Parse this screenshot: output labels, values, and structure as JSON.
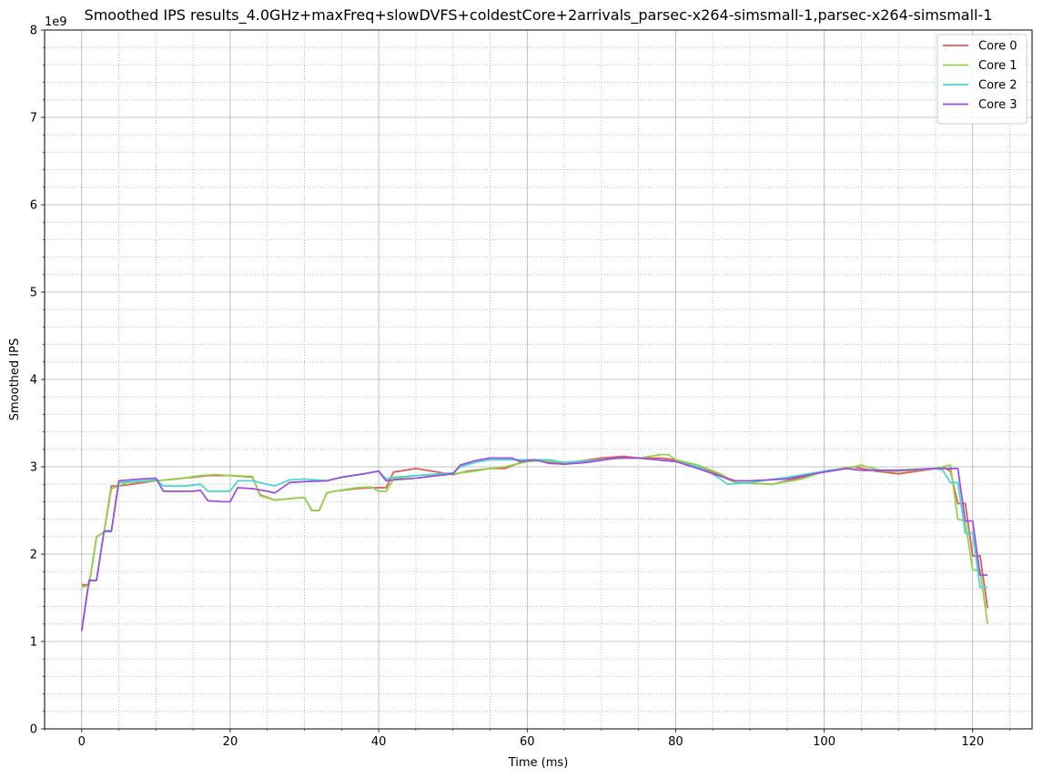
{
  "chart_data": {
    "type": "line",
    "title": "Smoothed IPS results_4.0GHz+maxFreq+slowDVFS+coldestCore+2arrivals_parsec-x264-simsmall-1,parsec-x264-simsmall-1",
    "xlabel": "Time (ms)",
    "ylabel": "Smoothed IPS",
    "y_offset_text": "1e9",
    "xlim": [
      -5,
      128
    ],
    "ylim": [
      0,
      8
    ],
    "x_ticks": [
      0,
      20,
      40,
      60,
      80,
      100,
      120
    ],
    "y_ticks": [
      0,
      1,
      2,
      3,
      4,
      5,
      6,
      7,
      8
    ],
    "grid": "major solid, minor dotted",
    "legend_position": "top-right",
    "series": [
      {
        "name": "Core 0",
        "color": "#e05a5a",
        "x": [
          0,
          1,
          2,
          3,
          4,
          5,
          10,
          15,
          17,
          20,
          23,
          24,
          26,
          30,
          31,
          32,
          33,
          34,
          37,
          39,
          40,
          41,
          42,
          45,
          50,
          52,
          55,
          57,
          60,
          62,
          65,
          70,
          73,
          75,
          78,
          80,
          83,
          86,
          88,
          93,
          97,
          100,
          104,
          107,
          110,
          115,
          116,
          117,
          118,
          119,
          120,
          121,
          122
        ],
        "y": [
          1.65,
          1.65,
          2.2,
          2.25,
          2.78,
          2.78,
          2.84,
          2.88,
          2.9,
          2.9,
          2.88,
          2.68,
          2.62,
          2.65,
          2.5,
          2.5,
          2.7,
          2.72,
          2.75,
          2.76,
          2.76,
          2.76,
          2.94,
          2.98,
          2.91,
          2.95,
          2.98,
          2.98,
          3.08,
          3.07,
          3.04,
          3.1,
          3.12,
          3.1,
          3.1,
          3.08,
          3.0,
          2.9,
          2.82,
          2.8,
          2.88,
          2.95,
          3.0,
          2.95,
          2.92,
          2.98,
          3.0,
          2.95,
          2.58,
          2.58,
          1.98,
          1.98,
          1.38
        ]
      },
      {
        "name": "Core 1",
        "color": "#8fd44f",
        "x": [
          0,
          1,
          2,
          3,
          4,
          5,
          6,
          10,
          13,
          16,
          18,
          20,
          23,
          24,
          26,
          30,
          31,
          32,
          33,
          34,
          37,
          39,
          40,
          41,
          42,
          45,
          50,
          52,
          55,
          57,
          60,
          62,
          65,
          70,
          73,
          75,
          78,
          79,
          80,
          83,
          86,
          88,
          93,
          97,
          100,
          104,
          105,
          108,
          110,
          115,
          117,
          118,
          119,
          120,
          121,
          122
        ],
        "y": [
          1.62,
          1.65,
          2.2,
          2.25,
          2.75,
          2.78,
          2.82,
          2.84,
          2.86,
          2.9,
          2.91,
          2.9,
          2.89,
          2.67,
          2.62,
          2.65,
          2.5,
          2.5,
          2.7,
          2.72,
          2.76,
          2.77,
          2.72,
          2.72,
          2.86,
          2.9,
          2.92,
          2.94,
          2.98,
          3.0,
          3.06,
          3.07,
          3.05,
          3.08,
          3.1,
          3.1,
          3.14,
          3.14,
          3.08,
          3.02,
          2.92,
          2.82,
          2.8,
          2.86,
          2.95,
          3.0,
          3.02,
          2.95,
          2.95,
          2.98,
          3.02,
          2.4,
          2.38,
          1.82,
          1.82,
          1.2
        ]
      },
      {
        "name": "Core 2",
        "color": "#4fd4d4",
        "x": [
          0,
          1,
          2,
          3,
          4,
          5,
          10,
          11,
          14,
          16,
          17,
          20,
          21,
          23,
          25,
          26,
          28,
          30,
          33,
          35,
          38,
          40,
          41,
          42,
          45,
          50,
          51,
          53,
          55,
          60,
          63,
          65,
          70,
          72,
          75,
          80,
          83,
          85,
          87,
          90,
          95,
          100,
          103,
          105,
          110,
          115,
          116,
          117,
          118,
          119,
          120,
          121,
          122
        ],
        "y": [
          1.13,
          1.7,
          1.7,
          2.27,
          2.27,
          2.82,
          2.85,
          2.78,
          2.78,
          2.8,
          2.72,
          2.72,
          2.84,
          2.84,
          2.8,
          2.78,
          2.85,
          2.86,
          2.84,
          2.88,
          2.92,
          2.95,
          2.86,
          2.88,
          2.9,
          2.93,
          3.0,
          3.05,
          3.08,
          3.08,
          3.08,
          3.05,
          3.08,
          3.1,
          3.1,
          3.06,
          3.0,
          2.92,
          2.8,
          2.82,
          2.88,
          2.95,
          2.98,
          2.96,
          2.96,
          2.98,
          2.96,
          2.82,
          2.82,
          2.24,
          2.24,
          1.62,
          1.62
        ]
      },
      {
        "name": "Core 3",
        "color": "#9b51d6",
        "x": [
          0,
          1,
          2,
          3,
          4,
          5,
          8,
          10,
          11,
          15,
          16,
          17,
          19,
          20,
          21,
          23,
          25,
          26,
          28,
          30,
          33,
          35,
          38,
          40,
          41,
          42,
          45,
          50,
          51,
          53,
          55,
          58,
          59,
          61,
          63,
          65,
          68,
          72,
          75,
          80,
          83,
          85,
          88,
          90,
          95,
          100,
          103,
          105,
          110,
          115,
          116,
          117,
          118,
          119,
          120,
          121,
          122
        ],
        "y": [
          1.12,
          1.7,
          1.7,
          2.26,
          2.26,
          2.84,
          2.86,
          2.87,
          2.72,
          2.72,
          2.73,
          2.61,
          2.6,
          2.6,
          2.76,
          2.75,
          2.72,
          2.7,
          2.82,
          2.83,
          2.84,
          2.88,
          2.92,
          2.95,
          2.84,
          2.85,
          2.87,
          2.92,
          3.02,
          3.07,
          3.1,
          3.1,
          3.06,
          3.08,
          3.04,
          3.03,
          3.05,
          3.1,
          3.1,
          3.06,
          2.98,
          2.92,
          2.84,
          2.84,
          2.86,
          2.94,
          2.98,
          2.96,
          2.96,
          2.98,
          2.98,
          2.98,
          2.98,
          2.38,
          2.38,
          1.76,
          1.76
        ]
      }
    ]
  }
}
